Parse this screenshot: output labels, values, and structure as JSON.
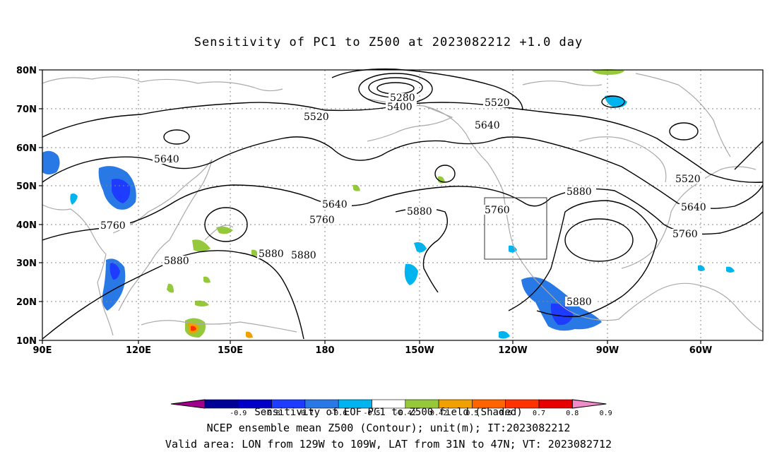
{
  "title": "Sensitivity of PC1 to Z500 at 2023082212 +1.0 day",
  "map": {
    "lat_labels": [
      "80N",
      "70N",
      "60N",
      "50N",
      "40N",
      "30N",
      "20N",
      "10N"
    ],
    "lon_labels": [
      "90E",
      "120E",
      "150E",
      "180",
      "150W",
      "120W",
      "90W",
      "60W"
    ],
    "contour_labels": [
      "5280",
      "5400",
      "5520",
      "5520",
      "5520",
      "5640",
      "5640",
      "5640",
      "5640",
      "5760",
      "5760",
      "5760",
      "5760",
      "5880",
      "5880",
      "5880",
      "5880",
      "5880",
      "5880"
    ],
    "contour_color": "#000000",
    "coast_color": "#aaaaaa",
    "grid_color": "#888888",
    "valid_box": {
      "lon_west": "129W",
      "lon_east": "109W",
      "lat_south": "31N",
      "lat_north": "47N"
    }
  },
  "colorbar": {
    "caption": "Sensitivity of EOF PC1 to Z500 field (Shaded)",
    "tick_labels": [
      "-0.9",
      "-0.8",
      "-0.7",
      "-0.6",
      "-0.5",
      "-0.42",
      "0.42",
      "0.5",
      "0.6",
      "0.7",
      "0.8",
      "0.9"
    ],
    "colors": [
      "#a0008c",
      "#000096",
      "#0000c8",
      "#1e3cff",
      "#2878e6",
      "#00b4f0",
      "#ffffff",
      "#96c83c",
      "#f0a000",
      "#ff6400",
      "#ff3200",
      "#e60000",
      "#f08cc8"
    ]
  },
  "footer": {
    "line1": "NCEP ensemble mean Z500 (Contour); unit(m); IT:2023082212",
    "line2": "Valid area: LON from 129W to 109W, LAT from 31N to 47N; VT: 2023082712"
  }
}
